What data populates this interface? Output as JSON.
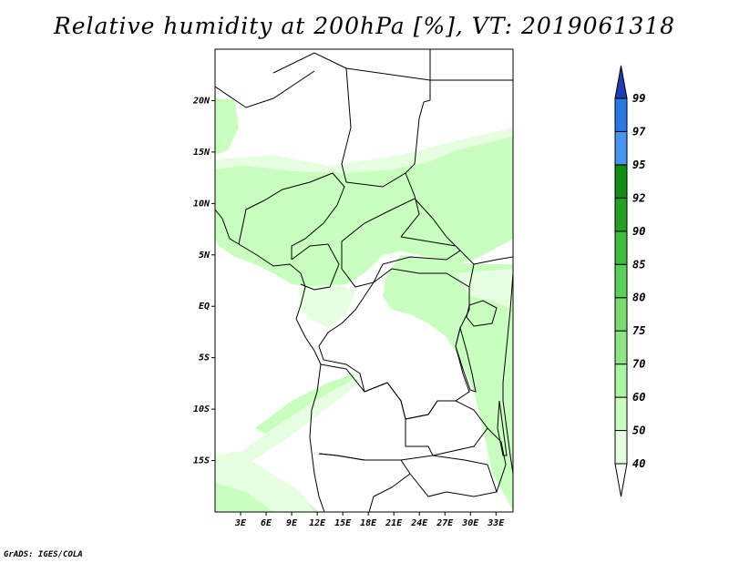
{
  "title": "Relative humidity at 200hPa [%], VT: 2019061318",
  "credit": "GrADS: IGES/COLA",
  "map": {
    "lat_labels": [
      "20N",
      "15N",
      "10N",
      "5N",
      "EQ",
      "5S",
      "10S",
      "15S"
    ],
    "lon_labels": [
      "3E",
      "6E",
      "9E",
      "12E",
      "15E",
      "18E",
      "21E",
      "24E",
      "27E",
      "30E",
      "33E"
    ],
    "lon_range": [
      0,
      35
    ],
    "lat_range": [
      -20,
      25
    ],
    "shading_colors": {
      "rh40": "#e6ffe1",
      "rh50": "#c8ffbe",
      "rh60": "#aff5a3"
    }
  },
  "colorbar": {
    "labels": [
      "40",
      "50",
      "60",
      "70",
      "75",
      "80",
      "85",
      "90",
      "92",
      "95",
      "97",
      "99"
    ],
    "colors": [
      "#e6ffe1",
      "#c8ffbe",
      "#aaf5a0",
      "#8ce682",
      "#78dc6e",
      "#5ad25a",
      "#3cbe3c",
      "#22a022",
      "#108c10",
      "#4696f0",
      "#2878e6",
      "#1e5ac8",
      "#1e3cb4"
    ]
  }
}
